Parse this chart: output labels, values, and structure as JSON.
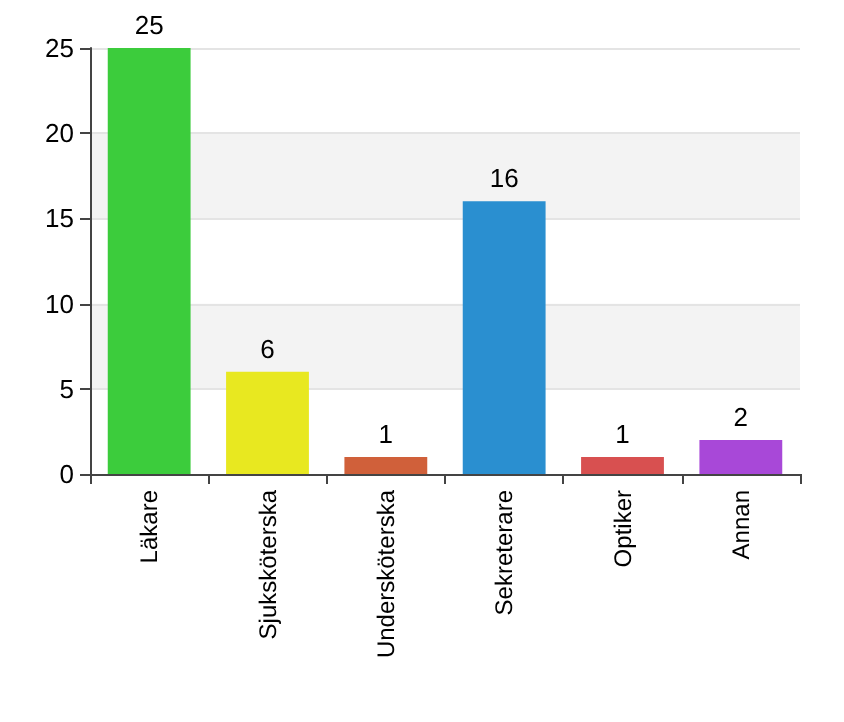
{
  "chart_data": {
    "type": "bar",
    "categories": [
      "Läkare",
      "Sjuksköterska",
      "Undersköterska",
      "Sekreterare",
      "Optiker",
      "Annan"
    ],
    "values": [
      25,
      6,
      1,
      16,
      1,
      2
    ],
    "colors": [
      "#3ccc3c",
      "#e8e820",
      "#d0603a",
      "#2a8fd0",
      "#d85050",
      "#a848d8"
    ],
    "ylim": [
      0,
      25
    ],
    "yticks": [
      0,
      5,
      10,
      15,
      20,
      25
    ],
    "grid": "y",
    "data_labels": true
  }
}
